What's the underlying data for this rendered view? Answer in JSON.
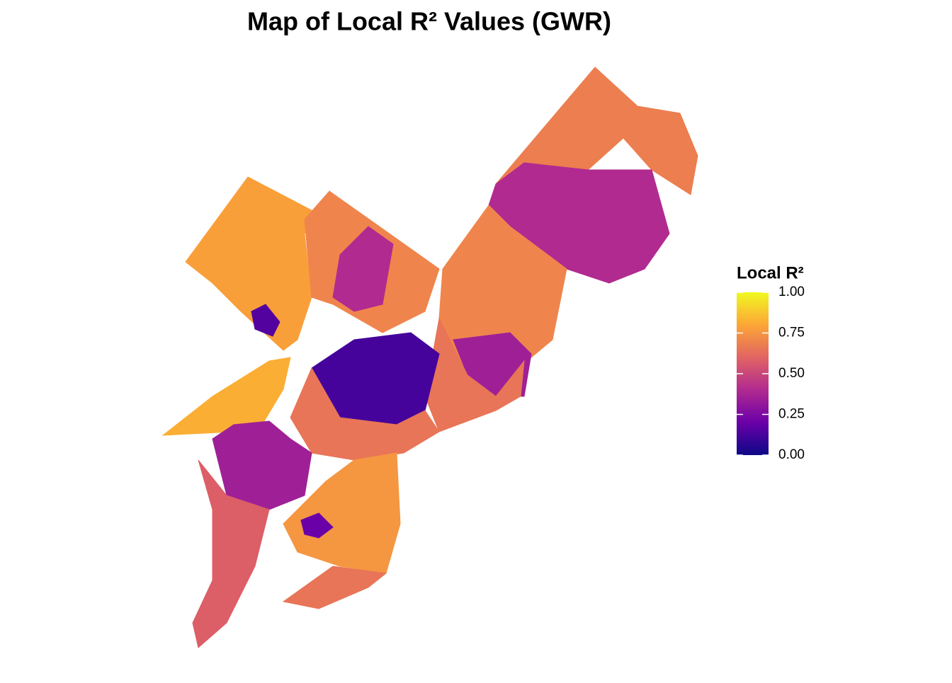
{
  "chart_data": {
    "type": "choropleth",
    "title": "Map of Local R² Values (GWR)",
    "legend_title": "Local R²",
    "values": [
      0.78,
      0.15,
      0.7,
      0.4,
      0.68,
      0.4,
      0.7,
      0.35,
      0.65,
      0.12,
      0.65,
      0.82,
      0.35,
      0.58,
      0.75,
      0.2,
      0.65
    ],
    "clim": [
      0,
      1
    ],
    "cticks": [
      {
        "value": 0,
        "label": "0.00"
      },
      {
        "value": 0.25,
        "label": "0.25"
      },
      {
        "value": 0.5,
        "label": "0.50"
      },
      {
        "value": 0.75,
        "label": "0.75"
      },
      {
        "value": 1,
        "label": "1.00"
      }
    ],
    "colors": [
      "#0d0887",
      "#6a00a8",
      "#b12a90",
      "#e16462",
      "#fca636",
      "#f0f921"
    ]
  }
}
